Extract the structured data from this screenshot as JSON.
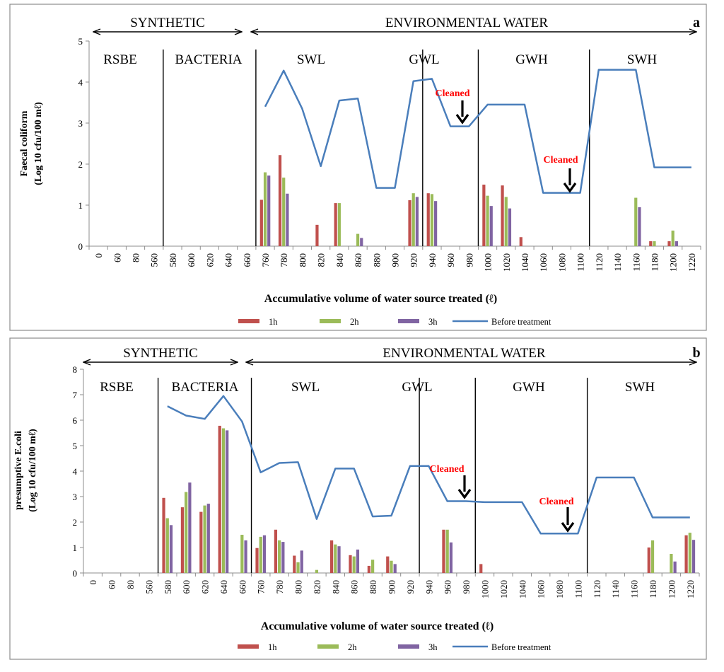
{
  "colors": {
    "h1": "#c0504d",
    "h2": "#9bbb59",
    "h3": "#8064a2",
    "before": "#4a7ebb",
    "annotation": "#ff0000"
  },
  "header_left": "SYNTHETIC",
  "header_right": "ENVIRONMENTAL WATER",
  "xlabel": "Accumulative volume  of water source treated (ℓ)",
  "chart_data": [
    {
      "type": "bar",
      "panel": "a",
      "ylabel_line1": "Faecal coliform",
      "ylabel_line2": "(Log 10 cfu/100 mℓ)",
      "ylim": [
        0,
        5
      ],
      "yticks": [
        "0",
        "1",
        "2",
        "3",
        "4",
        "5"
      ],
      "categories": [
        "0",
        "60",
        "80",
        "560",
        "580",
        "600",
        "620",
        "640",
        "660",
        "760",
        "780",
        "800",
        "820",
        "840",
        "860",
        "880",
        "900",
        "920",
        "940",
        "960",
        "980",
        "1000",
        "1020",
        "1040",
        "1060",
        "1080",
        "1100",
        "1120",
        "1140",
        "1160",
        "1180",
        "1200",
        "1220"
      ],
      "regions": [
        "RSBE",
        "BACTERIA",
        "SWL",
        "GWL",
        "GWH",
        "SWH"
      ],
      "annotations": [
        "Cleaned",
        "Cleaned"
      ],
      "series": [
        {
          "name": "1h",
          "kind": "bar",
          "values": [
            null,
            null,
            null,
            null,
            null,
            null,
            null,
            null,
            null,
            1.13,
            2.22,
            null,
            0.52,
            1.05,
            null,
            null,
            null,
            1.12,
            1.29,
            null,
            null,
            1.5,
            1.48,
            0.22,
            null,
            null,
            null,
            null,
            null,
            null,
            0.12,
            0.12,
            null
          ]
        },
        {
          "name": "2h",
          "kind": "bar",
          "values": [
            null,
            null,
            null,
            null,
            null,
            null,
            null,
            null,
            null,
            1.8,
            1.67,
            null,
            null,
            1.05,
            0.3,
            null,
            null,
            1.29,
            1.27,
            null,
            null,
            1.23,
            1.2,
            null,
            null,
            null,
            null,
            null,
            null,
            1.18,
            0.12,
            0.38,
            null
          ]
        },
        {
          "name": "3h",
          "kind": "bar",
          "values": [
            null,
            null,
            null,
            null,
            null,
            null,
            null,
            null,
            null,
            1.72,
            1.28,
            null,
            null,
            null,
            0.2,
            null,
            null,
            1.2,
            1.1,
            null,
            null,
            0.98,
            0.92,
            null,
            null,
            null,
            null,
            null,
            null,
            0.95,
            null,
            0.12,
            null
          ]
        },
        {
          "name": "Before treatment",
          "kind": "line",
          "values": [
            null,
            null,
            null,
            null,
            null,
            null,
            null,
            null,
            null,
            3.4,
            4.28,
            3.35,
            1.95,
            3.55,
            3.6,
            1.42,
            1.42,
            4.02,
            4.08,
            2.92,
            2.92,
            3.45,
            3.45,
            3.45,
            1.3,
            1.3,
            1.3,
            4.3,
            4.3,
            4.3,
            1.92,
            1.92,
            1.92
          ]
        }
      ]
    },
    {
      "type": "bar",
      "panel": "b",
      "ylabel_line1": "presumptive E.coli",
      "ylabel_line2": "(Log 10 cfu/100 mℓ)",
      "ylim": [
        0,
        8
      ],
      "yticks": [
        "0",
        "1",
        "2",
        "3",
        "4",
        "5",
        "6",
        "7",
        "8"
      ],
      "categories": [
        "0",
        "60",
        "80",
        "560",
        "580",
        "600",
        "620",
        "640",
        "660",
        "760",
        "780",
        "800",
        "820",
        "840",
        "860",
        "880",
        "900",
        "920",
        "940",
        "960",
        "980",
        "1000",
        "1020",
        "1040",
        "1060",
        "1080",
        "1100",
        "1120",
        "1140",
        "1160",
        "1180",
        "1200",
        "1220"
      ],
      "regions": [
        "RSBE",
        "BACTERIA",
        "SWL",
        "GWL",
        "GWH",
        "SWH"
      ],
      "annotations": [
        "Cleaned",
        "Cleaned"
      ],
      "series": [
        {
          "name": "1h",
          "kind": "bar",
          "values": [
            null,
            null,
            null,
            null,
            2.95,
            2.58,
            2.4,
            5.78,
            null,
            0.98,
            1.7,
            0.68,
            null,
            1.28,
            0.7,
            0.28,
            0.65,
            null,
            null,
            1.7,
            null,
            0.35,
            null,
            null,
            null,
            null,
            null,
            null,
            null,
            null,
            1.0,
            null,
            1.48
          ]
        },
        {
          "name": "2h",
          "kind": "bar",
          "values": [
            null,
            null,
            null,
            null,
            2.15,
            3.18,
            2.65,
            5.68,
            1.5,
            1.42,
            1.28,
            0.42,
            0.12,
            1.12,
            0.65,
            0.52,
            0.48,
            null,
            null,
            1.7,
            null,
            null,
            null,
            null,
            null,
            null,
            null,
            null,
            null,
            null,
            1.28,
            0.75,
            1.58
          ]
        },
        {
          "name": "3h",
          "kind": "bar",
          "values": [
            null,
            null,
            null,
            null,
            1.88,
            3.55,
            2.72,
            5.6,
            1.28,
            1.48,
            1.22,
            0.88,
            null,
            1.05,
            0.92,
            null,
            0.35,
            null,
            null,
            1.2,
            null,
            null,
            null,
            null,
            null,
            null,
            null,
            null,
            null,
            null,
            null,
            0.45,
            1.3
          ]
        },
        {
          "name": "Before treatment",
          "kind": "line",
          "values": [
            null,
            null,
            null,
            null,
            6.55,
            6.18,
            6.05,
            6.95,
            5.95,
            3.95,
            4.32,
            4.35,
            2.12,
            4.1,
            4.1,
            2.22,
            2.25,
            4.2,
            4.2,
            2.82,
            2.82,
            2.78,
            2.78,
            2.78,
            1.55,
            1.55,
            1.55,
            3.75,
            3.75,
            3.75,
            2.18,
            2.18,
            2.18
          ]
        }
      ]
    }
  ]
}
